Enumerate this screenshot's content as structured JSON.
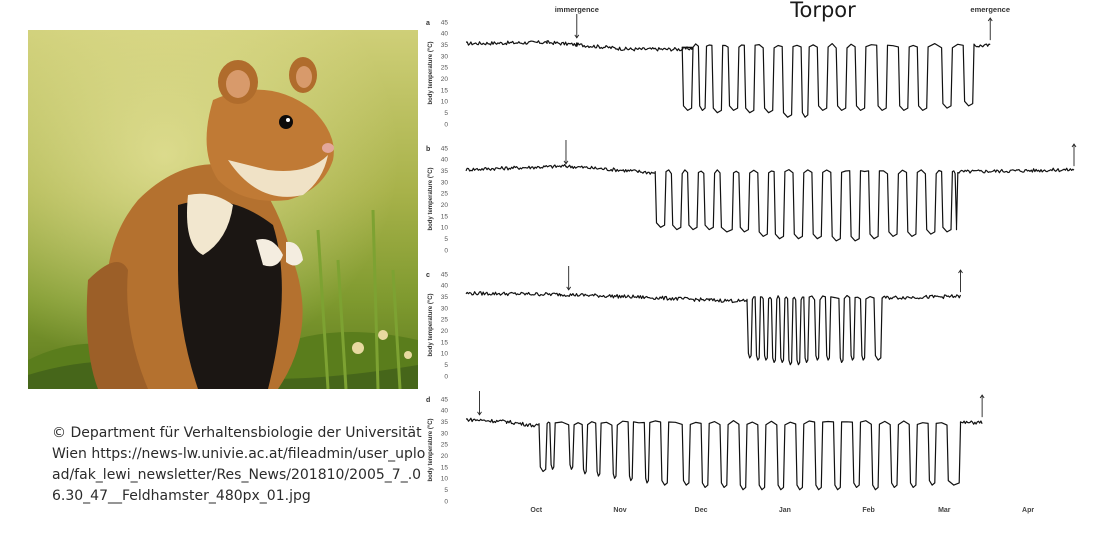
{
  "photo": {
    "subject": "European hamster",
    "colors": {
      "sky": "#c9c96a",
      "grass": "#7c9a2e",
      "fur": "#b8742f",
      "belly": "#1a1512",
      "cream": "#f1e6cd"
    }
  },
  "caption": {
    "text": "© Department für Verhaltensbiologie der Universität Wien https://news-lw.univie.ac.at/fileadmin/user_upload/fak_lewi_newsletter/Res_News/201810/2005_7_.06.30_47__Feldhamster_480px_01.jpg"
  },
  "chart_data": {
    "type": "line",
    "title": "Torpor",
    "ylabel": "body temperature (°C)",
    "ylim": [
      0,
      45
    ],
    "yticks": [
      "45",
      "40",
      "35",
      "30",
      "25",
      "20",
      "15",
      "10",
      "5",
      "0"
    ],
    "xlabel": "",
    "xticks": [
      "Oct",
      "Nov",
      "Dec",
      "Jan",
      "Feb",
      "Mar",
      "Apr"
    ],
    "xlim_days": [
      0,
      225
    ],
    "xtick_days": [
      26,
      57,
      87,
      118,
      149,
      177,
      208
    ],
    "annotations": {
      "immergence": "immergence",
      "emergence": "emergence"
    },
    "panels": [
      {
        "label": "a",
        "series": [
          {
            "name": "Body temperature",
            "segments": [
              [
                0,
                35.5
              ],
              [
                30,
                36
              ],
              [
                41,
                35
              ],
              [
                60,
                33
              ],
              [
                80,
                33
              ],
              [
                84,
                33.5
              ]
            ]
          }
        ],
        "baseline": 36,
        "baseline_end": 84,
        "torpor_end": 188,
        "emergence_day": 194,
        "bouts": [
          [
            80,
            84,
            6
          ],
          [
            86,
            89,
            6
          ],
          [
            91,
            95,
            5
          ],
          [
            97,
            101,
            6
          ],
          [
            103,
            107,
            5
          ],
          [
            110,
            114,
            5
          ],
          [
            117,
            121,
            3
          ],
          [
            124,
            127,
            3
          ],
          [
            130,
            134,
            6
          ],
          [
            137,
            141,
            6
          ],
          [
            144,
            148,
            6
          ],
          [
            152,
            156,
            6
          ],
          [
            160,
            164,
            6
          ],
          [
            167,
            171,
            6
          ],
          [
            176,
            180,
            7
          ],
          [
            184,
            188,
            8
          ]
        ],
        "immergence_day": 41,
        "show_immergence_text": true,
        "show_emergence_text": true
      },
      {
        "label": "b",
        "series": [
          {
            "name": "Body temperature",
            "segments": [
              [
                0,
                35.5
              ],
              [
                37,
                37
              ],
              [
                60,
                35
              ],
              [
                70,
                34
              ]
            ]
          }
        ],
        "baseline": 35,
        "baseline_end": 70,
        "torpor_end": 182,
        "emergence_day": 225,
        "bouts": [
          [
            70,
            74,
            10
          ],
          [
            76,
            80,
            9
          ],
          [
            82,
            86,
            9
          ],
          [
            88,
            92,
            9
          ],
          [
            94,
            99,
            8
          ],
          [
            101,
            105,
            8
          ],
          [
            108,
            112,
            6
          ],
          [
            114,
            118,
            5
          ],
          [
            121,
            125,
            5
          ],
          [
            128,
            132,
            5
          ],
          [
            135,
            139,
            4
          ],
          [
            142,
            146,
            4
          ],
          [
            149,
            153,
            5
          ],
          [
            156,
            160,
            6
          ],
          [
            163,
            167,
            6
          ],
          [
            170,
            174,
            7
          ],
          [
            176,
            180,
            8
          ],
          [
            181,
            182,
            9
          ]
        ],
        "immergence_day": 37,
        "show_immergence_text": false,
        "show_emergence_text": false
      },
      {
        "label": "c",
        "series": [
          {
            "name": "Body temperature",
            "segments": [
              [
                0,
                36.5
              ],
              [
                35,
                36
              ],
              [
                60,
                35
              ],
              [
                90,
                33.5
              ],
              [
                104,
                33
              ]
            ]
          }
        ],
        "baseline": 35,
        "baseline_end": 104,
        "torpor_end": 154,
        "emergence_day": 183,
        "bouts": [
          [
            104,
            106,
            8
          ],
          [
            107,
            109,
            7
          ],
          [
            110,
            112,
            7
          ],
          [
            113,
            115,
            6
          ],
          [
            116,
            118,
            6
          ],
          [
            119,
            121,
            5
          ],
          [
            122,
            124,
            5
          ],
          [
            125,
            127,
            6
          ],
          [
            129,
            131,
            7
          ],
          [
            133,
            135,
            7
          ],
          [
            138,
            140,
            6
          ],
          [
            142,
            144,
            7
          ],
          [
            146,
            148,
            7
          ],
          [
            151,
            154,
            7
          ]
        ],
        "immergence_day": 38,
        "show_immergence_text": false,
        "show_emergence_text": false
      },
      {
        "label": "d",
        "series": [
          {
            "name": "Body temperature",
            "segments": [
              [
                0,
                36
              ],
              [
                15,
                35
              ],
              [
                27,
                33
              ]
            ]
          }
        ],
        "baseline": 35,
        "baseline_end": 27,
        "torpor_end": 183,
        "emergence_day": 191,
        "bouts": [
          [
            27,
            30,
            13
          ],
          [
            31,
            33,
            14
          ],
          [
            38,
            40,
            14
          ],
          [
            43,
            45,
            12
          ],
          [
            48,
            50,
            11
          ],
          [
            54,
            56,
            10
          ],
          [
            60,
            62,
            9
          ],
          [
            66,
            68,
            8
          ],
          [
            72,
            75,
            7
          ],
          [
            80,
            83,
            7
          ],
          [
            87,
            90,
            6
          ],
          [
            94,
            97,
            6
          ],
          [
            101,
            104,
            5
          ],
          [
            108,
            111,
            5
          ],
          [
            115,
            118,
            5
          ],
          [
            122,
            125,
            5
          ],
          [
            129,
            132,
            5
          ],
          [
            136,
            139,
            5
          ],
          [
            143,
            146,
            6
          ],
          [
            150,
            153,
            5
          ],
          [
            157,
            160,
            6
          ],
          [
            164,
            167,
            6
          ],
          [
            171,
            174,
            7
          ],
          [
            178,
            183,
            7
          ]
        ],
        "immergence_day": 5,
        "show_immergence_text": false,
        "show_emergence_text": false
      }
    ]
  }
}
